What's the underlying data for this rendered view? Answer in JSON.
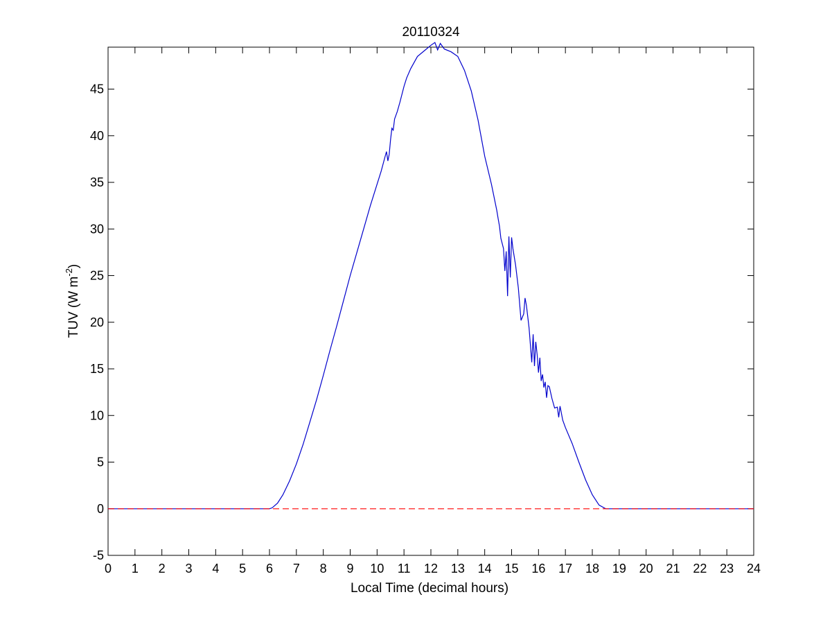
{
  "chart_data": {
    "type": "line",
    "title": "20110324",
    "xlabel": "Local Time (decimal hours)",
    "ylabel": "TUV (W m",
    "ylabel_superscript": "-2",
    "ylabel_suffix": ")",
    "xlim": [
      0,
      24
    ],
    "ylim": [
      -5,
      49.5
    ],
    "xticks": [
      0,
      1,
      2,
      3,
      4,
      5,
      6,
      7,
      8,
      9,
      10,
      11,
      12,
      13,
      14,
      15,
      16,
      17,
      18,
      19,
      20,
      21,
      22,
      23,
      24
    ],
    "yticks": [
      -5,
      0,
      5,
      10,
      15,
      20,
      25,
      30,
      35,
      40,
      45
    ],
    "grid": false,
    "colors": {
      "series": "#0000cc",
      "reference": "#ff0000",
      "axes": "#000000"
    },
    "series": [
      {
        "style": "solid",
        "color": "#0000cc",
        "x": [
          0,
          6.0,
          6.1,
          6.3,
          6.5,
          6.75,
          7.0,
          7.25,
          7.5,
          7.75,
          8.0,
          8.25,
          8.5,
          8.75,
          9.0,
          9.25,
          9.5,
          9.75,
          10.0,
          10.15,
          10.3,
          10.35,
          10.4,
          10.45,
          10.5,
          10.55,
          10.6,
          10.65,
          10.75,
          10.85,
          11.0,
          11.1,
          11.25,
          11.5,
          11.75,
          12.0,
          12.15,
          12.25,
          12.35,
          12.5,
          12.75,
          13.0,
          13.25,
          13.5,
          13.75,
          14.0,
          14.25,
          14.45,
          14.5,
          14.55,
          14.6,
          14.7,
          14.75,
          14.8,
          14.85,
          14.9,
          14.95,
          15.0,
          15.05,
          15.15,
          15.25,
          15.35,
          15.45,
          15.5,
          15.55,
          15.65,
          15.75,
          15.8,
          15.85,
          15.9,
          15.95,
          16.0,
          16.05,
          16.1,
          16.15,
          16.2,
          16.25,
          16.3,
          16.35,
          16.4,
          16.5,
          16.6,
          16.7,
          16.75,
          16.8,
          16.9,
          17.0,
          17.25,
          17.5,
          17.75,
          18.0,
          18.25,
          18.5,
          18.6,
          18.75,
          24
        ],
        "y": [
          0,
          0,
          0.1,
          0.6,
          1.5,
          3.0,
          4.8,
          6.9,
          9.3,
          11.7,
          14.3,
          17.0,
          19.6,
          22.3,
          25.0,
          27.5,
          30.0,
          32.5,
          34.8,
          36.2,
          37.8,
          38.3,
          37.3,
          38.0,
          39.6,
          40.8,
          40.6,
          41.8,
          42.6,
          43.6,
          45.3,
          46.2,
          47.2,
          48.5,
          49.1,
          49.7,
          50.0,
          49.2,
          49.9,
          49.3,
          49.0,
          48.5,
          47.0,
          44.8,
          41.7,
          37.8,
          34.8,
          32.0,
          31.1,
          30.3,
          29.0,
          27.9,
          25.5,
          27.6,
          22.8,
          29.2,
          24.8,
          29.1,
          27.9,
          26.1,
          23.7,
          20.2,
          20.9,
          22.6,
          21.8,
          19.4,
          15.7,
          18.7,
          15.3,
          17.9,
          16.5,
          14.6,
          16.2,
          13.7,
          14.4,
          13.0,
          13.6,
          11.9,
          13.2,
          13.1,
          11.8,
          10.8,
          10.9,
          9.8,
          11.0,
          9.5,
          8.7,
          7.0,
          5.0,
          3.1,
          1.5,
          0.4,
          0.0,
          0,
          0,
          0
        ]
      },
      {
        "style": "dashed",
        "color": "#ff0000",
        "x": [
          0,
          24
        ],
        "y": [
          0,
          0
        ]
      }
    ]
  }
}
